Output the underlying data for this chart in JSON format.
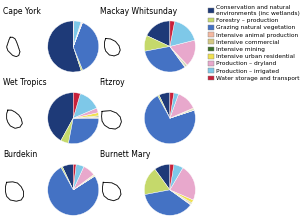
{
  "regions": [
    "Cape York",
    "Mackay Whitsunday",
    "Wet Tropics",
    "Fitzroy",
    "Burdekin",
    "Burnett Mary"
  ],
  "categories": [
    "Conservation and natural\nenvironments (inc wetlands)",
    "Forestry – production",
    "Grazing natural vegetation",
    "Intensive animal production",
    "Intensive commercial",
    "Intensive mining",
    "Intensive urban residential",
    "Production – dryland",
    "Production – irrigated",
    "Water storage and transport"
  ],
  "colors": [
    "#1e3a78",
    "#c5d96b",
    "#4472c4",
    "#f4b8a0",
    "#d4c882",
    "#3a6e2a",
    "#f0e050",
    "#e8a8cc",
    "#7ec8e8",
    "#c8203a"
  ],
  "data": {
    "Cape York": [
      55,
      1,
      38,
      0.1,
      0.1,
      0.2,
      0.1,
      0.5,
      4.5,
      0.4
    ],
    "Mackay Whitsunday": [
      18,
      10,
      32,
      0.5,
      0.4,
      0.6,
      0.5,
      17,
      18,
      3
    ],
    "Wet Tropics": [
      42,
      5,
      28,
      0.5,
      0.5,
      0.5,
      2,
      3,
      14,
      4.5
    ],
    "Fitzroy": [
      7,
      1,
      72,
      0.2,
      0.3,
      0.5,
      0.5,
      13,
      3,
      2.5
    ],
    "Burdekin": [
      7,
      1,
      76,
      0.2,
      0.2,
      0.3,
      0.5,
      8,
      5,
      1.8
    ],
    "Burnett Mary": [
      10,
      18,
      37,
      0.5,
      0.5,
      0.5,
      2,
      23,
      6,
      2.5
    ]
  },
  "title_fontsize": 5.5,
  "legend_fontsize": 4.2,
  "background": "#ffffff"
}
